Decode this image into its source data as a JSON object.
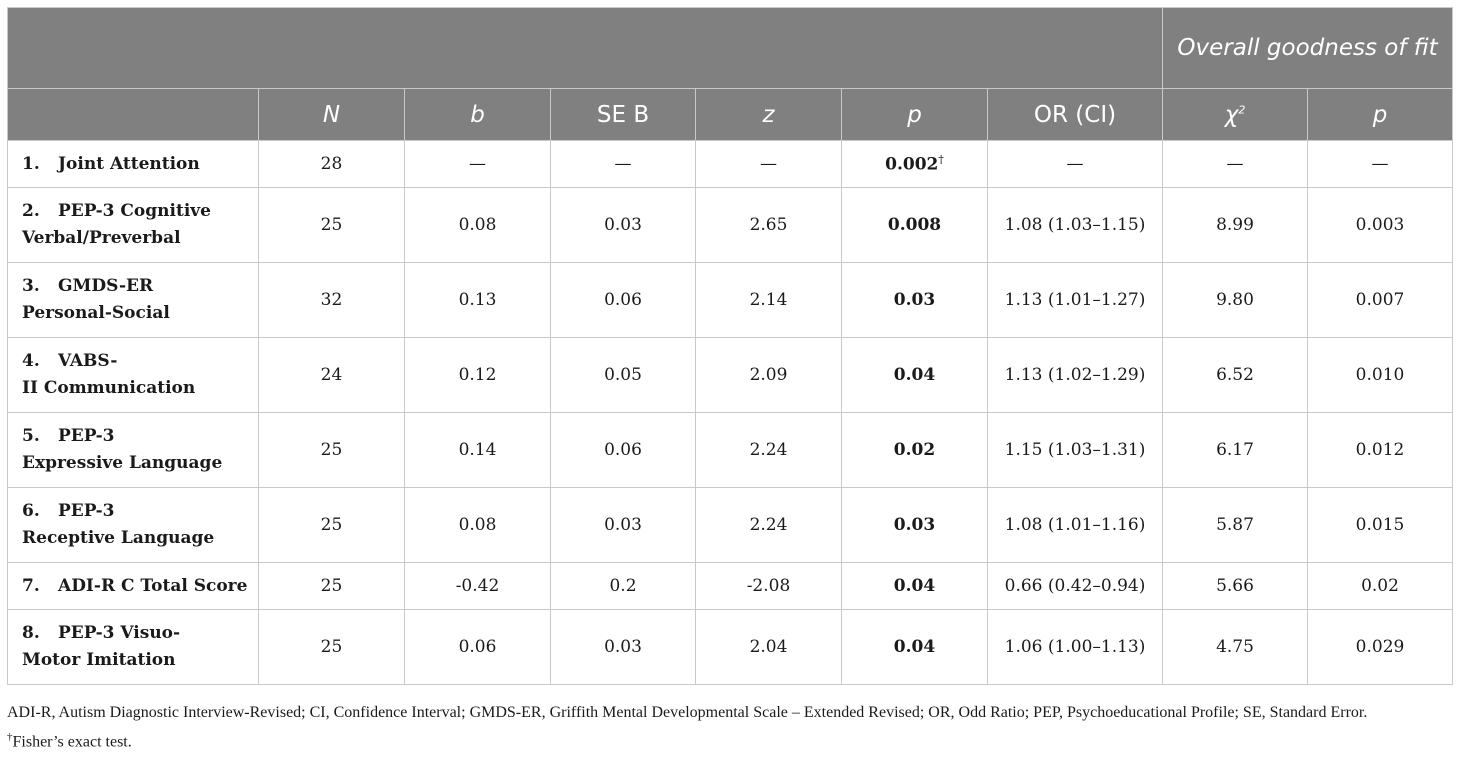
{
  "table": {
    "group_header": "Overall goodness of fit",
    "columns": {
      "n": "N",
      "b": "b",
      "se": "SE B",
      "z": "z",
      "p": "p",
      "or": "OR (CI)",
      "chi": "χ",
      "chi_sup": "2",
      "gof_p": "p"
    },
    "rows": [
      {
        "num": "1.",
        "label_lines": [
          "Joint Attention"
        ],
        "n": "28",
        "b": "—",
        "se": "—",
        "z": "—",
        "p": "0.002",
        "p_sup": "†",
        "or": "—",
        "chi": "—",
        "gof_p": "—"
      },
      {
        "num": "2.",
        "label_lines": [
          "PEP-3 Cognitive",
          "Verbal/Preverbal"
        ],
        "n": "25",
        "b": "0.08",
        "se": "0.03",
        "z": "2.65",
        "p": "0.008",
        "or": "1.08 (1.03–1.15)",
        "chi": "8.99",
        "gof_p": "0.003"
      },
      {
        "num": "3.",
        "label_lines": [
          "GMDS-ER",
          "Personal-Social"
        ],
        "n": "32",
        "b": "0.13",
        "se": "0.06",
        "z": "2.14",
        "p": "0.03",
        "or": "1.13 (1.01–1.27)",
        "chi": "9.80",
        "gof_p": "0.007"
      },
      {
        "num": "4.",
        "label_lines": [
          "VABS-",
          "II Communication"
        ],
        "n": "24",
        "b": "0.12",
        "se": "0.05",
        "z": "2.09",
        "p": "0.04",
        "or": "1.13 (1.02–1.29)",
        "chi": "6.52",
        "gof_p": "0.010"
      },
      {
        "num": "5.",
        "label_lines": [
          "PEP-3",
          "Expressive Language"
        ],
        "n": "25",
        "b": "0.14",
        "se": "0.06",
        "z": "2.24",
        "p": "0.02",
        "or": "1.15 (1.03–1.31)",
        "chi": "6.17",
        "gof_p": "0.012"
      },
      {
        "num": "6.",
        "label_lines": [
          "PEP-3",
          "Receptive Language"
        ],
        "n": "25",
        "b": "0.08",
        "se": "0.03",
        "z": "2.24",
        "p": "0.03",
        "or": "1.08 (1.01–1.16)",
        "chi": "5.87",
        "gof_p": "0.015"
      },
      {
        "num": "7.",
        "label_lines": [
          "ADI-R C Total Score"
        ],
        "n": "25",
        "b": "-0.42",
        "se": "0.2",
        "z": "-2.08",
        "p": "0.04",
        "or": "0.66 (0.42–0.94)",
        "chi": "5.66",
        "gof_p": "0.02"
      },
      {
        "num": "8.",
        "label_lines": [
          "PEP-3 Visuo-",
          "Motor Imitation"
        ],
        "n": "25",
        "b": "0.06",
        "se": "0.03",
        "z": "2.04",
        "p": "0.04",
        "or": "1.06 (1.00–1.13)",
        "chi": "4.75",
        "gof_p": "0.029"
      }
    ]
  },
  "footnotes": {
    "abbreviations": "ADI-R, Autism Diagnostic Interview-Revised; CI, Confidence Interval; GMDS-ER, Griffith Mental Developmental Scale – Extended Revised; OR, Odd Ratio; PEP, Psychoeducational Profile; SE, Standard Error.",
    "dagger_mark": "†",
    "dagger_text": "Fisher’s exact test."
  }
}
